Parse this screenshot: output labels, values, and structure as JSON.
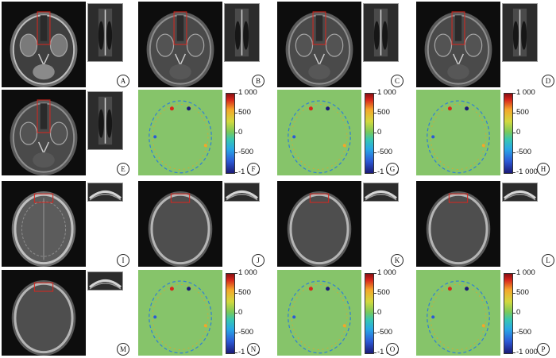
{
  "panels": [
    {
      "label": "A",
      "type": "mri-axial-skullbase"
    },
    {
      "label": "B",
      "type": "ct-axial-skullbase"
    },
    {
      "label": "C",
      "type": "ct-axial-skullbase"
    },
    {
      "label": "D",
      "type": "ct-axial-skullbase"
    },
    {
      "label": "E",
      "type": "ct-axial-skullbase"
    },
    {
      "label": "F",
      "type": "difference-map"
    },
    {
      "label": "G",
      "type": "difference-map"
    },
    {
      "label": "H",
      "type": "difference-map"
    },
    {
      "label": "I",
      "type": "mri-axial-cranium"
    },
    {
      "label": "J",
      "type": "ct-axial-cranium"
    },
    {
      "label": "K",
      "type": "ct-axial-cranium"
    },
    {
      "label": "L",
      "type": "ct-axial-cranium"
    },
    {
      "label": "M",
      "type": "ct-axial-cranium"
    },
    {
      "label": "N",
      "type": "difference-map"
    },
    {
      "label": "O",
      "type": "difference-map"
    },
    {
      "label": "P",
      "type": "difference-map"
    }
  ],
  "colorbar": {
    "ticks": [
      "1 000",
      "500",
      "0",
      "-500",
      "-1 000"
    ],
    "range": [
      -1000,
      1000
    ],
    "colormap": "jet"
  },
  "colors": {
    "background": "#ffffff",
    "image_bg": "#0d0d0d",
    "map_bg": "#86c46a",
    "roi_box": "#d9251d"
  }
}
